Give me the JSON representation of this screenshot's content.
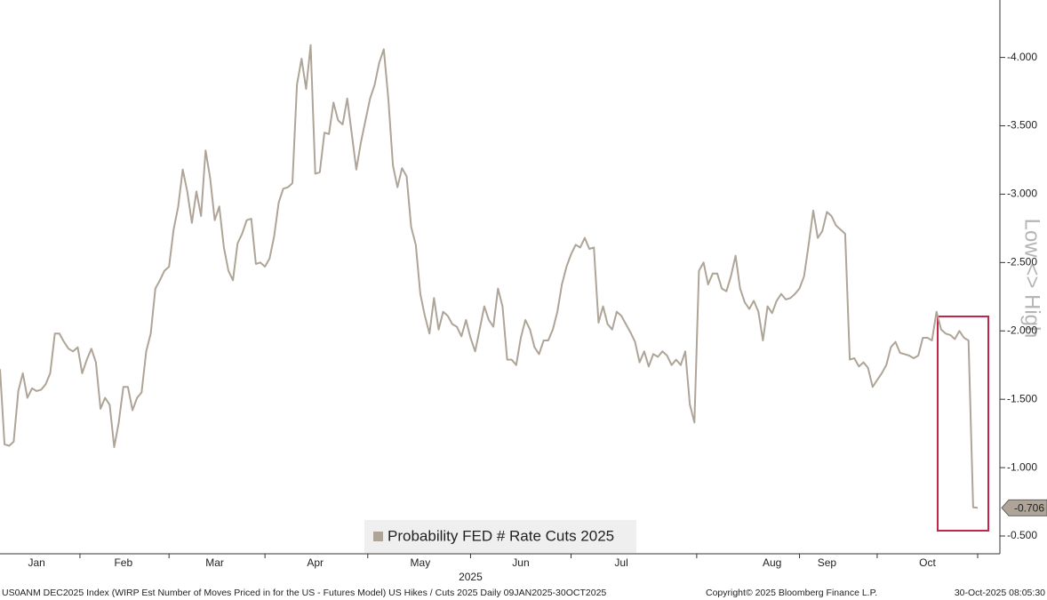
{
  "chart_data": {
    "type": "line",
    "series": [
      {
        "name": "Probability FED # Rate Cuts 2025",
        "color": "#aea497",
        "values": [
          -1.72,
          -1.17,
          -1.16,
          -1.19,
          -1.56,
          -1.69,
          -1.51,
          -1.58,
          -1.56,
          -1.57,
          -1.61,
          -1.69,
          -1.98,
          -1.98,
          -1.92,
          -1.87,
          -1.85,
          -1.88,
          -1.69,
          -1.79,
          -1.87,
          -1.77,
          -1.43,
          -1.51,
          -1.46,
          -1.15,
          -1.33,
          -1.59,
          -1.59,
          -1.42,
          -1.51,
          -1.55,
          -1.85,
          -1.98,
          -2.31,
          -2.37,
          -2.44,
          -2.47,
          -2.74,
          -2.91,
          -3.18,
          -3.02,
          -2.79,
          -3.02,
          -2.84,
          -3.32,
          -3.12,
          -2.81,
          -2.91,
          -2.61,
          -2.44,
          -2.37,
          -2.64,
          -2.71,
          -2.81,
          -2.82,
          -2.49,
          -2.5,
          -2.47,
          -2.53,
          -2.69,
          -2.94,
          -3.04,
          -3.05,
          -3.08,
          -3.8,
          -3.99,
          -3.77,
          -4.09,
          -3.15,
          -3.16,
          -3.45,
          -3.44,
          -3.67,
          -3.54,
          -3.51,
          -3.7,
          -3.44,
          -3.18,
          -3.38,
          -3.54,
          -3.7,
          -3.8,
          -3.96,
          -4.06,
          -3.7,
          -3.21,
          -3.05,
          -3.19,
          -3.13,
          -2.76,
          -2.63,
          -2.27,
          -2.11,
          -1.98,
          -2.24,
          -2.01,
          -2.14,
          -2.11,
          -2.05,
          -2.03,
          -1.96,
          -2.08,
          -1.95,
          -1.85,
          -2.01,
          -2.18,
          -2.08,
          -2.03,
          -2.31,
          -2.18,
          -1.79,
          -1.79,
          -1.75,
          -1.95,
          -2.08,
          -2.01,
          -1.88,
          -1.83,
          -1.93,
          -1.93,
          -2.01,
          -2.14,
          -2.34,
          -2.47,
          -2.56,
          -2.63,
          -2.61,
          -2.68,
          -2.6,
          -2.61,
          -2.06,
          -2.18,
          -2.05,
          -2.01,
          -2.14,
          -2.11,
          -2.05,
          -1.99,
          -1.92,
          -1.77,
          -1.85,
          -1.74,
          -1.83,
          -1.81,
          -1.85,
          -1.82,
          -1.75,
          -1.79,
          -1.75,
          -1.85,
          -1.46,
          -1.33,
          -2.44,
          -2.5,
          -2.34,
          -2.42,
          -2.42,
          -2.31,
          -2.29,
          -2.4,
          -2.55,
          -2.31,
          -2.21,
          -2.16,
          -2.22,
          -2.14,
          -1.93,
          -2.18,
          -2.13,
          -2.22,
          -2.27,
          -2.23,
          -2.24,
          -2.27,
          -2.31,
          -2.4,
          -2.63,
          -2.88,
          -2.68,
          -2.73,
          -2.87,
          -2.84,
          -2.77,
          -2.74,
          -2.71,
          -1.79,
          -1.8,
          -1.74,
          -1.77,
          -1.73,
          -1.59,
          -1.64,
          -1.69,
          -1.75,
          -1.88,
          -1.92,
          -1.84,
          -1.83,
          -1.82,
          -1.8,
          -1.82,
          -1.95,
          -1.95,
          -1.93,
          -2.14,
          -2.01,
          -1.98,
          -1.97,
          -1.94,
          -2.0,
          -1.95,
          -1.93,
          -0.71,
          -0.706
        ],
        "last_value_label": "-0.706"
      }
    ],
    "categories": [
      null,
      null,
      null,
      null,
      null,
      null,
      null,
      null,
      "Jan",
      null,
      null,
      null,
      null,
      null,
      null,
      null,
      null,
      null,
      null,
      null,
      null,
      null,
      null,
      null,
      null,
      null,
      null,
      "Feb",
      null,
      null,
      null,
      null,
      null,
      null,
      null,
      null,
      null,
      null,
      null,
      null,
      null,
      null,
      null,
      null,
      null,
      null,
      null,
      "Mar",
      null,
      null,
      null,
      null,
      null,
      null,
      null,
      null,
      null,
      null,
      null,
      null,
      null,
      null,
      null,
      null,
      null,
      null,
      null,
      null,
      null,
      "Apr",
      null,
      null,
      null,
      null,
      null,
      null,
      null,
      null,
      null,
      null,
      null,
      null,
      null,
      null,
      null,
      null,
      null,
      null,
      null,
      null,
      null,
      null,
      "May",
      null,
      null,
      null,
      null,
      null,
      null,
      null,
      null,
      null,
      null,
      null,
      null,
      null,
      null,
      null,
      null,
      null,
      null,
      null,
      null,
      null,
      "Jun",
      null,
      null,
      null,
      null,
      null,
      null,
      null,
      null,
      null,
      null,
      null,
      null,
      null,
      null,
      null,
      null,
      null,
      null,
      null,
      null,
      null,
      "Jul",
      null,
      null,
      null,
      null,
      null,
      null,
      null,
      null,
      null,
      null,
      null,
      null,
      null,
      null,
      null,
      null,
      null,
      null,
      null,
      null,
      null,
      null,
      null,
      null,
      null,
      null,
      null,
      null,
      null,
      null,
      null,
      null,
      "Aug",
      null,
      null,
      null,
      null,
      null,
      null,
      null,
      null,
      null,
      null,
      null,
      "Sep",
      null,
      null,
      null,
      null,
      null,
      null,
      null,
      null,
      null,
      null,
      null,
      null,
      null,
      null,
      null,
      null,
      null,
      null,
      null,
      null,
      null,
      "Oct",
      null,
      null,
      null,
      null,
      null,
      null,
      null,
      null,
      null,
      null,
      null
    ],
    "x_year_label": "2025",
    "ylim": [
      -0.37,
      -4.42
    ],
    "yticks": [
      {
        "value": -0.5,
        "label": "-0.500"
      },
      {
        "value": -1.0,
        "label": "-1.000"
      },
      {
        "value": -1.5,
        "label": "-1.500"
      },
      {
        "value": -2.0,
        "label": "-2.000"
      },
      {
        "value": -2.5,
        "label": "-2.500"
      },
      {
        "value": -3.0,
        "label": "-3.000"
      },
      {
        "value": -3.5,
        "label": "-3.500"
      },
      {
        "value": -4.0,
        "label": "-4.000"
      }
    ],
    "y_axis_label": "Low <> High",
    "grid": false,
    "legend_position": "bottom",
    "footer": {
      "description": "US0ANM DEC2025 Index (WIRP Est Number of Moves Priced in for the US - Futures Model) US Hikes / Cuts 2025 Daily 09JAN2025-30OCT2025",
      "copyright": "Copyright© 2025 Bloomberg Finance L.P.",
      "timestamp": "30-Oct-2025 08:05:30"
    }
  }
}
